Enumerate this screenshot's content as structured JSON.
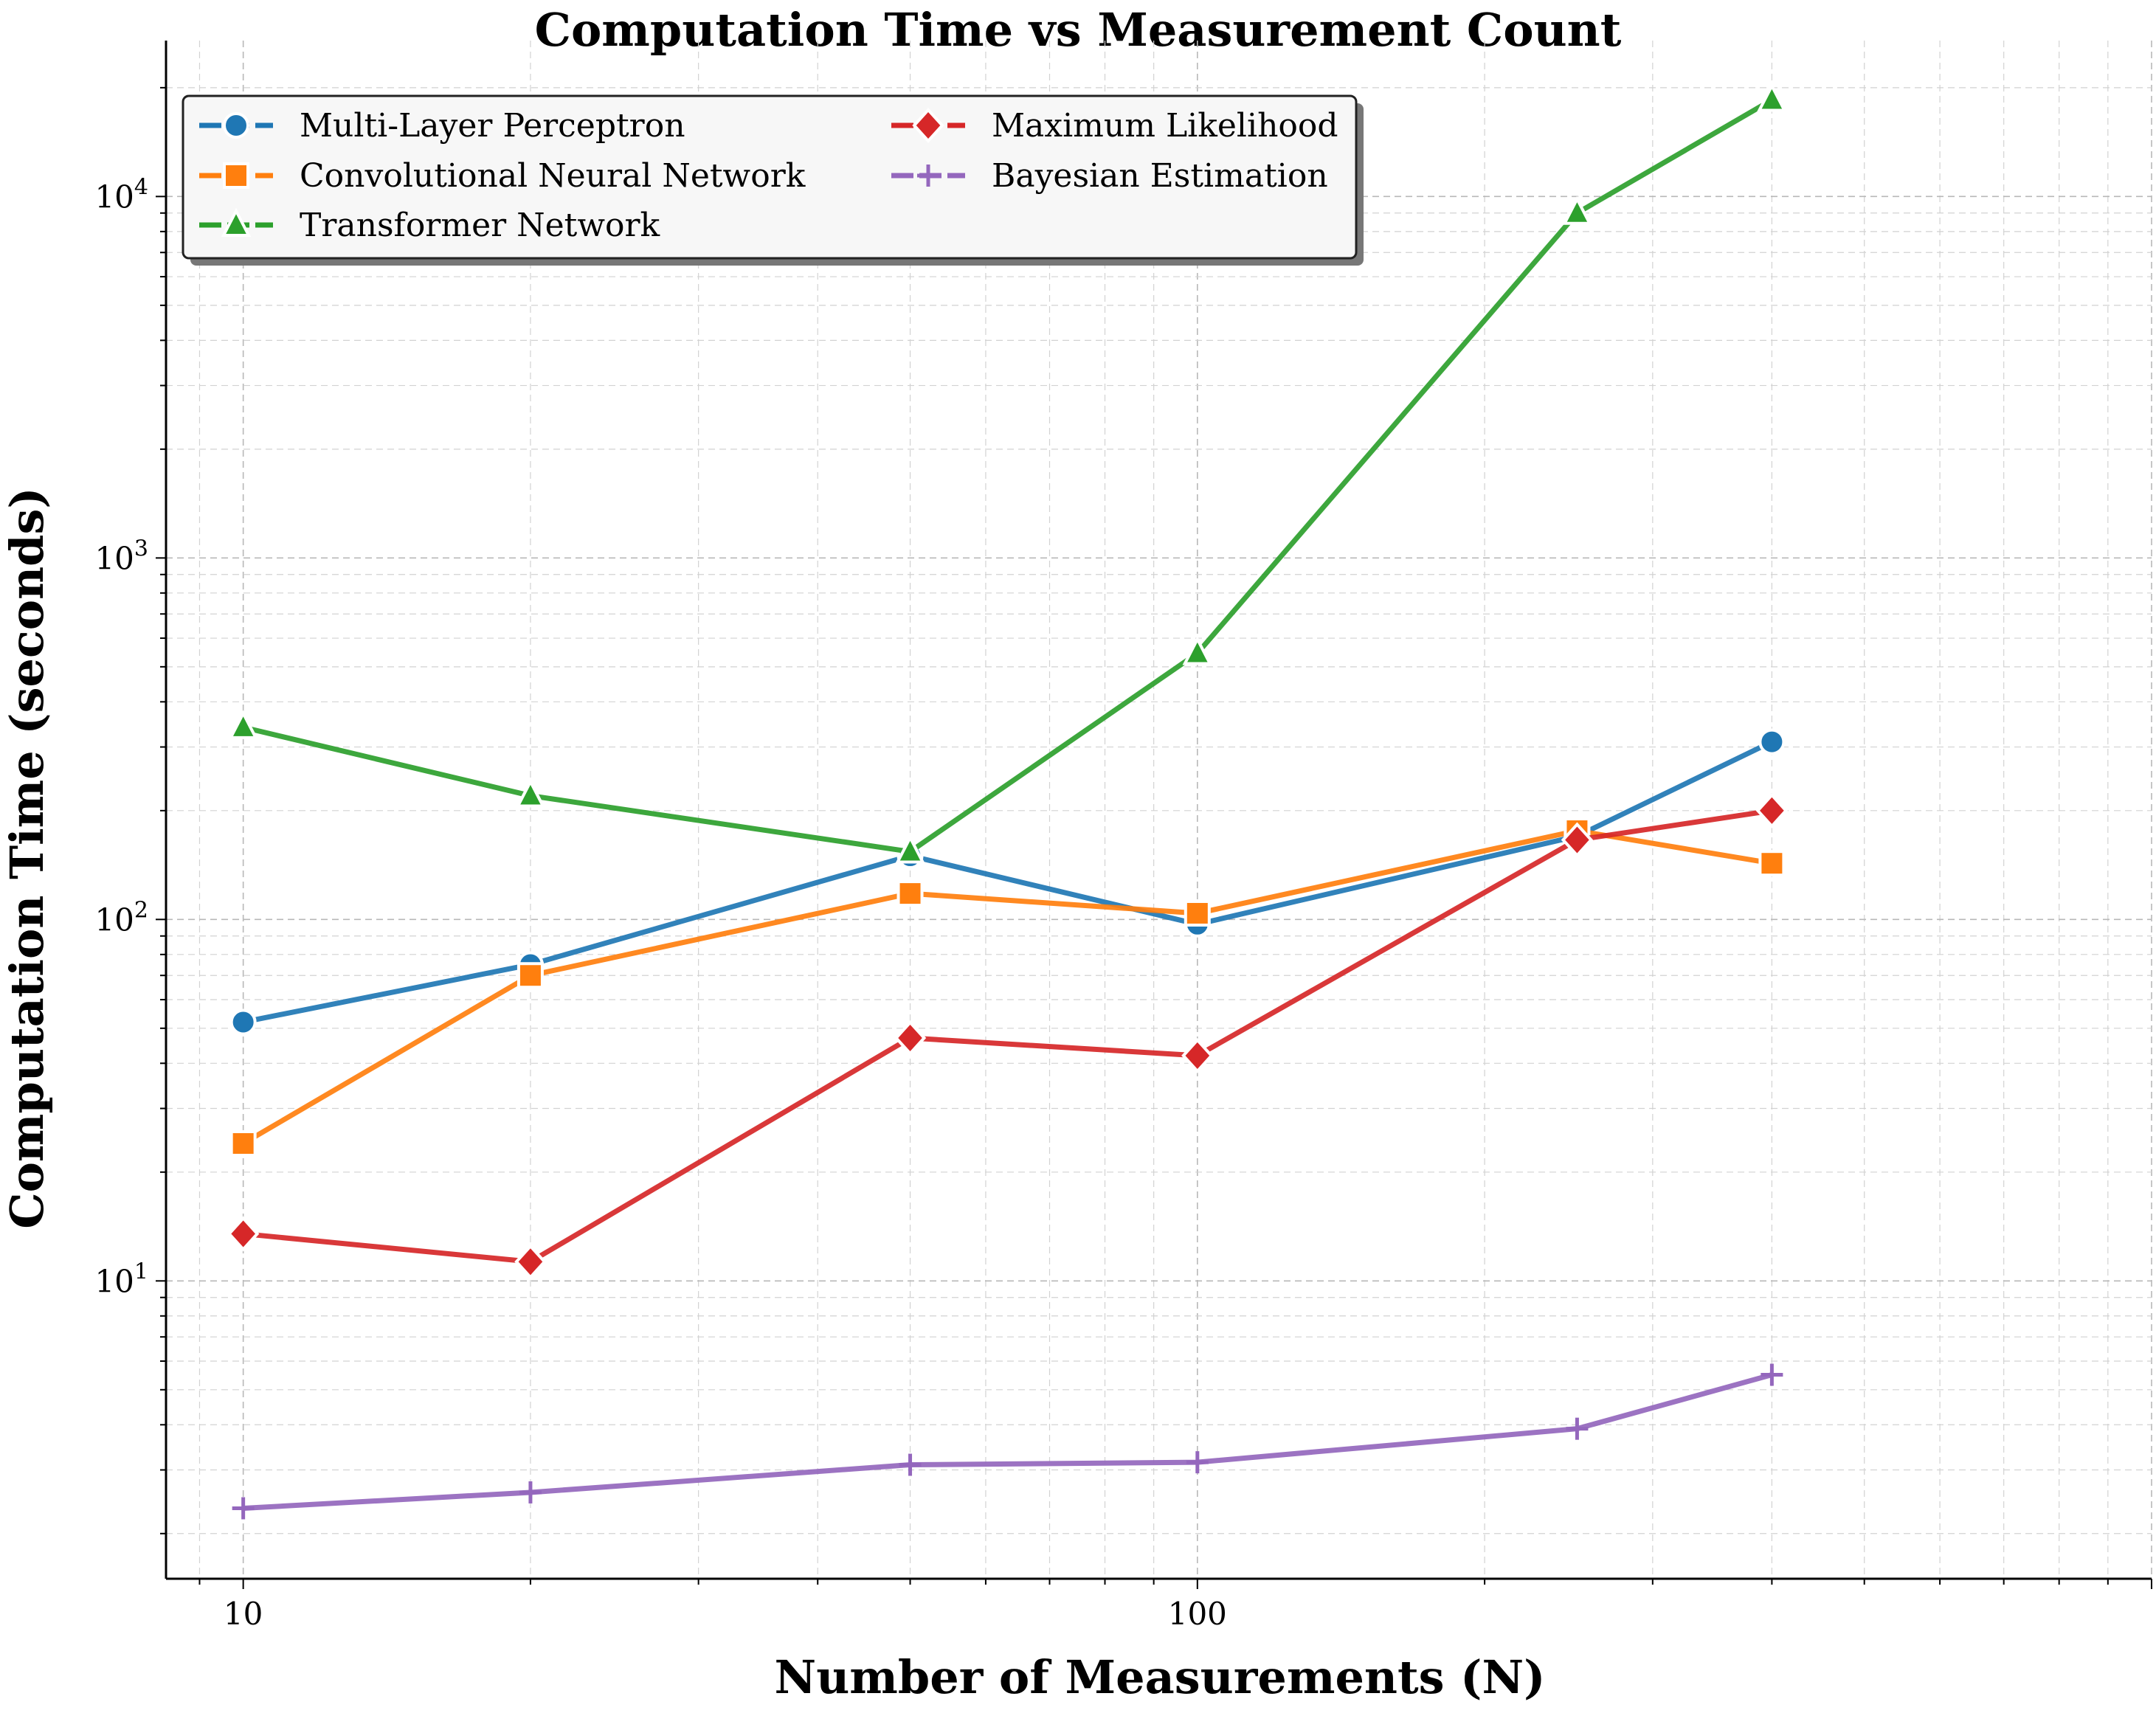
{
  "chart_data": {
    "type": "line",
    "title": "Computation Time vs Measurement Count",
    "xlabel": "Number of Measurements (N)",
    "ylabel": "Computation Time (seconds)",
    "xscale": "log",
    "yscale": "log",
    "xlim": [
      8.3,
      1000
    ],
    "ylim": [
      1.5,
      27000
    ],
    "grid": "on (major and minor, dashed)",
    "legend_placement": "top-left, two columns",
    "x_ticks": [
      {
        "value": 10,
        "label": "10"
      },
      {
        "value": 100,
        "label": "100"
      }
    ],
    "y_ticks": [
      {
        "value": 10,
        "base": "10",
        "exp": "1"
      },
      {
        "value": 100,
        "base": "10",
        "exp": "2"
      },
      {
        "value": 1000,
        "base": "10",
        "exp": "3"
      },
      {
        "value": 10000,
        "base": "10",
        "exp": "4"
      }
    ],
    "x": [
      10,
      20,
      50,
      100,
      250,
      400
    ],
    "series": [
      {
        "name": "Multi-Layer Perceptron",
        "color": "#1f77b4",
        "marker": "circle",
        "values": [
          52,
          75,
          150,
          97,
          170,
          310
        ]
      },
      {
        "name": "Convolutional Neural Network",
        "color": "#ff7f0e",
        "marker": "square",
        "values": [
          24,
          70,
          118,
          104,
          176,
          143
        ]
      },
      {
        "name": "Transformer Network",
        "color": "#2ca02c",
        "marker": "triangle",
        "values": [
          340,
          220,
          154,
          545,
          9000,
          18500
        ]
      },
      {
        "name": "Maximum Likelihood",
        "color": "#d62728",
        "marker": "diamond",
        "values": [
          13.5,
          11.3,
          47,
          42,
          166,
          200
        ]
      },
      {
        "name": "Bayesian Estimation",
        "color": "#9467bd",
        "marker": "plus",
        "values": [
          2.35,
          2.6,
          3.1,
          3.15,
          3.9,
          5.5
        ]
      }
    ]
  }
}
